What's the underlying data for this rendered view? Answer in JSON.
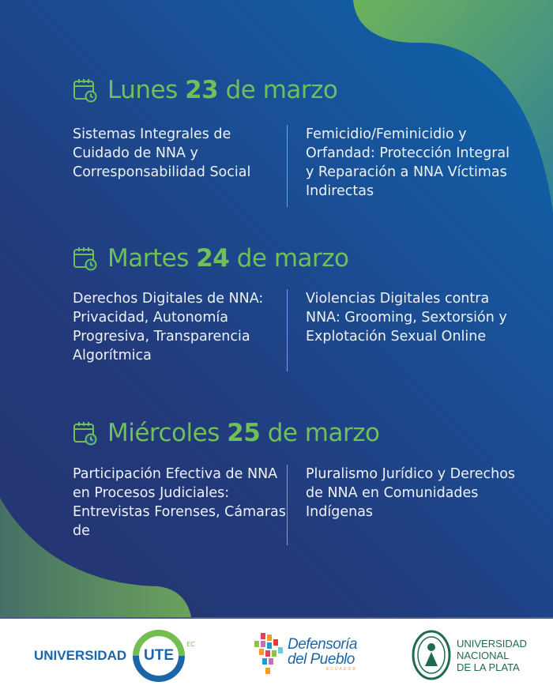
{
  "colors": {
    "accent_green": "#6fbf5a",
    "bg_blue": "#1a4f95",
    "bg_dark": "#24356f",
    "text": "#eef1f7"
  },
  "days": [
    {
      "weekday": "Lunes",
      "number": "23",
      "rest": "de marzo",
      "icon": "calendar-clock-icon",
      "left": "Sistemas Integrales de Cuidado de NNA y Corresponsabilidad Social",
      "right": "Femicidio/Feminicidio y Orfandad: Protección Integral y Reparación a NNA Víctimas Indirectas"
    },
    {
      "weekday": "Martes",
      "number": "24",
      "rest": "de marzo",
      "icon": "calendar-clock-icon",
      "left": "Derechos Digitales de NNA: Privacidad, Autonomía Progresiva, Transparencia Algorítmica",
      "right": "Violencias Digitales contra NNA: Grooming, Sextorsión y Explotación Sexual Online"
    },
    {
      "weekday": "Miércoles",
      "number": "25",
      "rest": "de marzo",
      "icon": "calendar-clock-icon",
      "left": "Participación Efectiva de NNA en Procesos Judiciales: Entrevistas Forenses, Cámaras de",
      "right": "Pluralismo Jurídico y Derechos de NNA en Comunidades Indígenas"
    }
  ],
  "footer": {
    "ute": {
      "name": "UNIVERSIDAD",
      "mark": "UTE",
      "suffix": "EC"
    },
    "defensoria": {
      "line1": "Defensoría",
      "line2": "del Pueblo",
      "country": "ECUADOR"
    },
    "unlp": {
      "line1": "UNIVERSIDAD",
      "line2": "NACIONAL",
      "line3": "DE LA PLATA"
    }
  }
}
